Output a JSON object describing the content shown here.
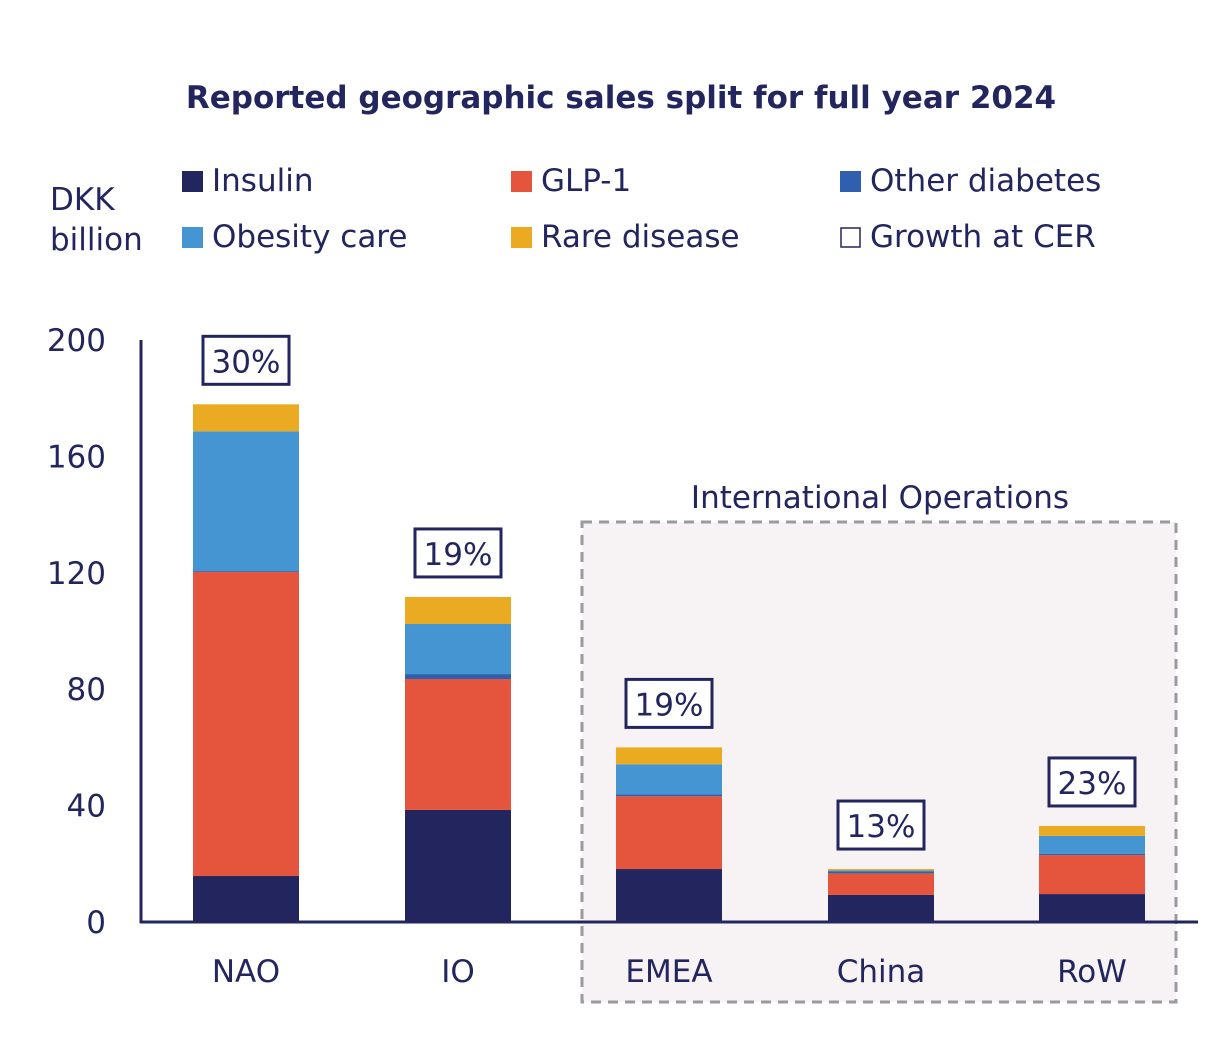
{
  "chart_data": {
    "type": "bar",
    "stacked": true,
    "title": "Reported geographic sales split for full year 2024",
    "ylabel": "DKK billion",
    "xlabel": "",
    "ylim": [
      0,
      200
    ],
    "yticks": [
      0,
      40,
      80,
      120,
      160,
      200
    ],
    "categories": [
      "NAO",
      "IO",
      "EMEA",
      "China",
      "RoW"
    ],
    "series": [
      {
        "name": "Insulin",
        "color": "#23265e",
        "values": [
          15.8,
          38.5,
          18.2,
          9.3,
          9.6
        ]
      },
      {
        "name": "GLP-1",
        "color": "#e5553d",
        "values": [
          104.5,
          45.0,
          25.0,
          7.4,
          13.4
        ]
      },
      {
        "name": "Other diabetes",
        "color": "#2f5fae",
        "values": [
          0.3,
          1.7,
          0.7,
          0.7,
          0.4
        ]
      },
      {
        "name": "Obesity care",
        "color": "#4495d1",
        "values": [
          48.0,
          17.2,
          10.3,
          0.3,
          6.2
        ]
      },
      {
        "name": "Rare disease",
        "color": "#eaab22",
        "values": [
          9.3,
          9.3,
          5.8,
          0.5,
          3.4
        ]
      }
    ],
    "growth_legend": "Growth at CER",
    "growth_labels": [
      "30%",
      "19%",
      "19%",
      "13%",
      "23%"
    ],
    "group_annotation": "International Operations",
    "legend_placement": "top"
  }
}
